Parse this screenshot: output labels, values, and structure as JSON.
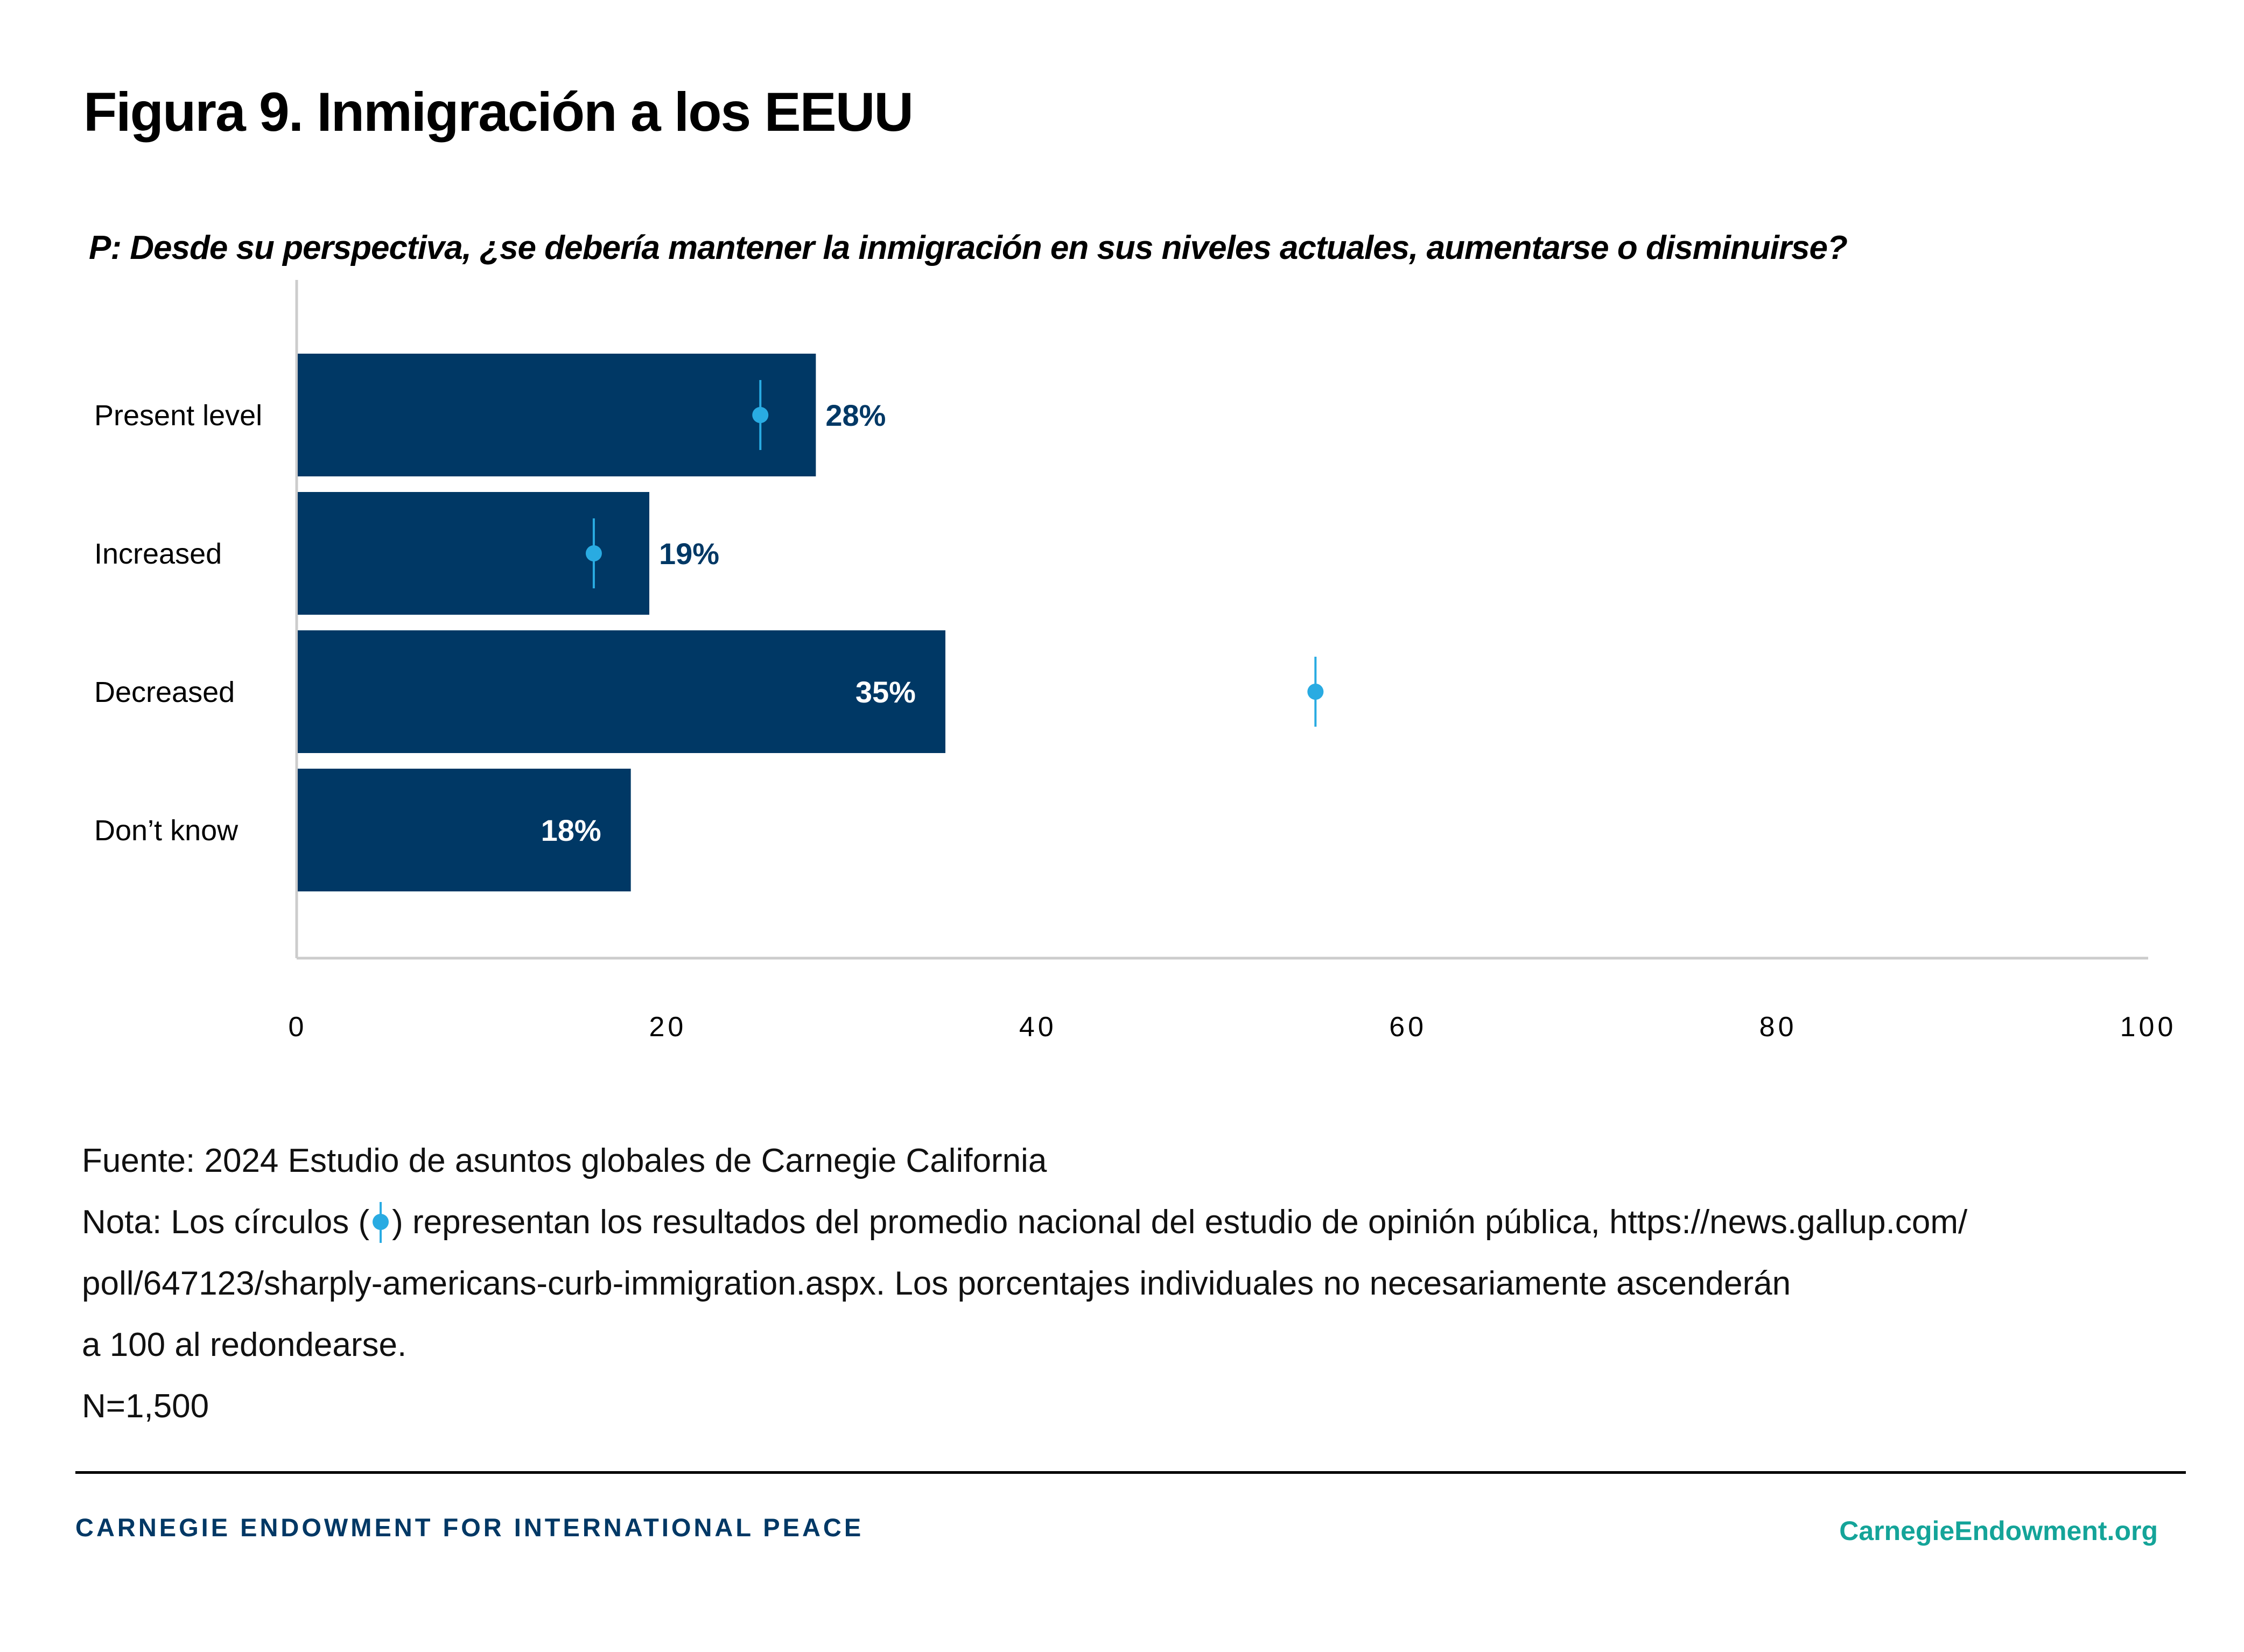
{
  "header": {
    "title": "Figura 9. Inmigración a los EEUU",
    "question": "P: Desde su perspectiva, ¿se debería mantener la inmigración en sus niveles actuales, aumentarse o disminuirse?"
  },
  "chart_data": {
    "type": "bar",
    "orientation": "horizontal",
    "title": "Figura 9. Inmigración a los EEUU",
    "subtitle": "P: Desde su perspectiva, ¿se debería mantener la inmigración en sus niveles actuales, aumentarse o disminuirse?",
    "xlabel": "",
    "ylabel": "",
    "categories": [
      "Present level",
      "Increased",
      "Decreased",
      "Don’t know"
    ],
    "values": [
      28,
      19,
      35,
      18
    ],
    "value_labels": [
      "28%",
      "19%",
      "35%",
      "18%"
    ],
    "national_average_markers": [
      25,
      16,
      55,
      null
    ],
    "xlim": [
      0,
      100
    ],
    "xticks": [
      0,
      20,
      40,
      60,
      80,
      100
    ],
    "xtick_labels": [
      "0",
      "20",
      "40",
      "60",
      "80",
      "100"
    ],
    "grid": false,
    "colors": {
      "bar": "#003865",
      "marker": "#29abe2",
      "axis": "#cccccc",
      "label_outside": "#003865",
      "label_inside": "#ffffff"
    }
  },
  "notes": {
    "source": "Fuente: 2024 Estudio de asuntos globales de Carnegie California",
    "note_prefix": "Nota: Los círculos  (",
    "note_line1_rest": ") representan los resultados del promedio nacional del estudio de opinión pública, https://news.gallup.com/",
    "note_line2": "poll/647123/sharply-americans-curb-immigration.aspx. Los porcentajes individuales no necesariamente ascenderán",
    "note_line3": "a 100 al redondearse.",
    "sample": "N=1,500"
  },
  "footer": {
    "org_name": "CARNEGIE ENDOWMENT FOR INTERNATIONAL PEACE",
    "url": "CarnegieEndowment.org",
    "org_color": "#003865",
    "url_color": "#14a499"
  }
}
